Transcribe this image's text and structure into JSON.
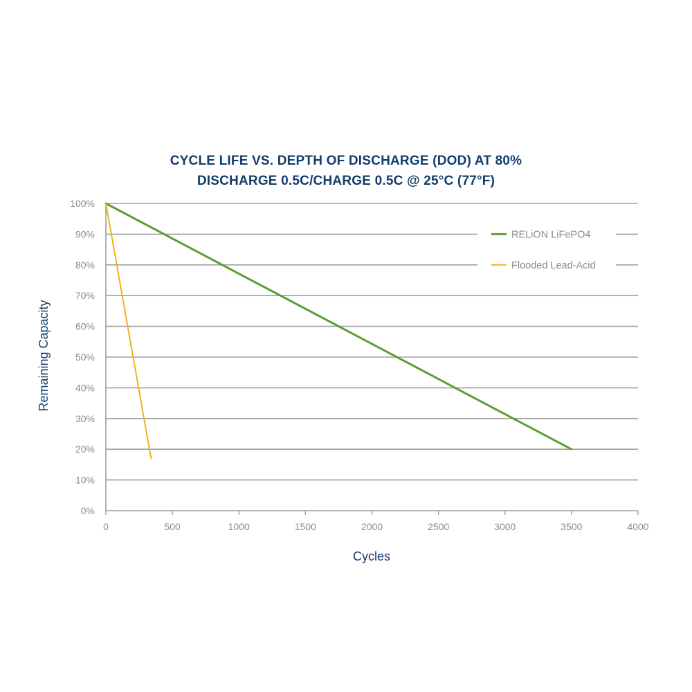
{
  "chart_data": {
    "type": "line",
    "title_lines": [
      "CYCLE LIFE VS. DEPTH OF DISCHARGE (DOD) AT 80%",
      "DISCHARGE 0.5C/CHARGE 0.5C @ 25°C (77°F)"
    ],
    "xlabel": "Cycles",
    "ylabel": "Remaining Capacity",
    "xlim": [
      0,
      4000
    ],
    "ylim": [
      0,
      100
    ],
    "x_ticks": [
      0,
      500,
      1000,
      1500,
      2000,
      2500,
      3000,
      3500,
      4000
    ],
    "x_tick_labels": [
      "0",
      "500",
      "1000",
      "1500",
      "2000",
      "2500",
      "3000",
      "3500",
      "4000"
    ],
    "y_ticks": [
      0,
      10,
      20,
      30,
      40,
      50,
      60,
      70,
      80,
      90,
      100
    ],
    "y_tick_labels": [
      "0%",
      "10%",
      "20%",
      "30%",
      "40%",
      "50%",
      "60%",
      "70%",
      "80%",
      "90%",
      "100%"
    ],
    "grid": "horizontal",
    "legend_position": "top-right",
    "series": [
      {
        "name": "RELiON LiFePO4",
        "color": "#5a9f32",
        "x": [
          0,
          3500
        ],
        "y": [
          100,
          20
        ]
      },
      {
        "name": "Flooded Lead-Acid",
        "color": "#f2b01e",
        "x": [
          0,
          340
        ],
        "y": [
          100,
          17
        ]
      }
    ]
  },
  "colors": {
    "title": "#123d6a",
    "grid": "#9e9e9e",
    "tick_text": "#8a8a8a"
  }
}
